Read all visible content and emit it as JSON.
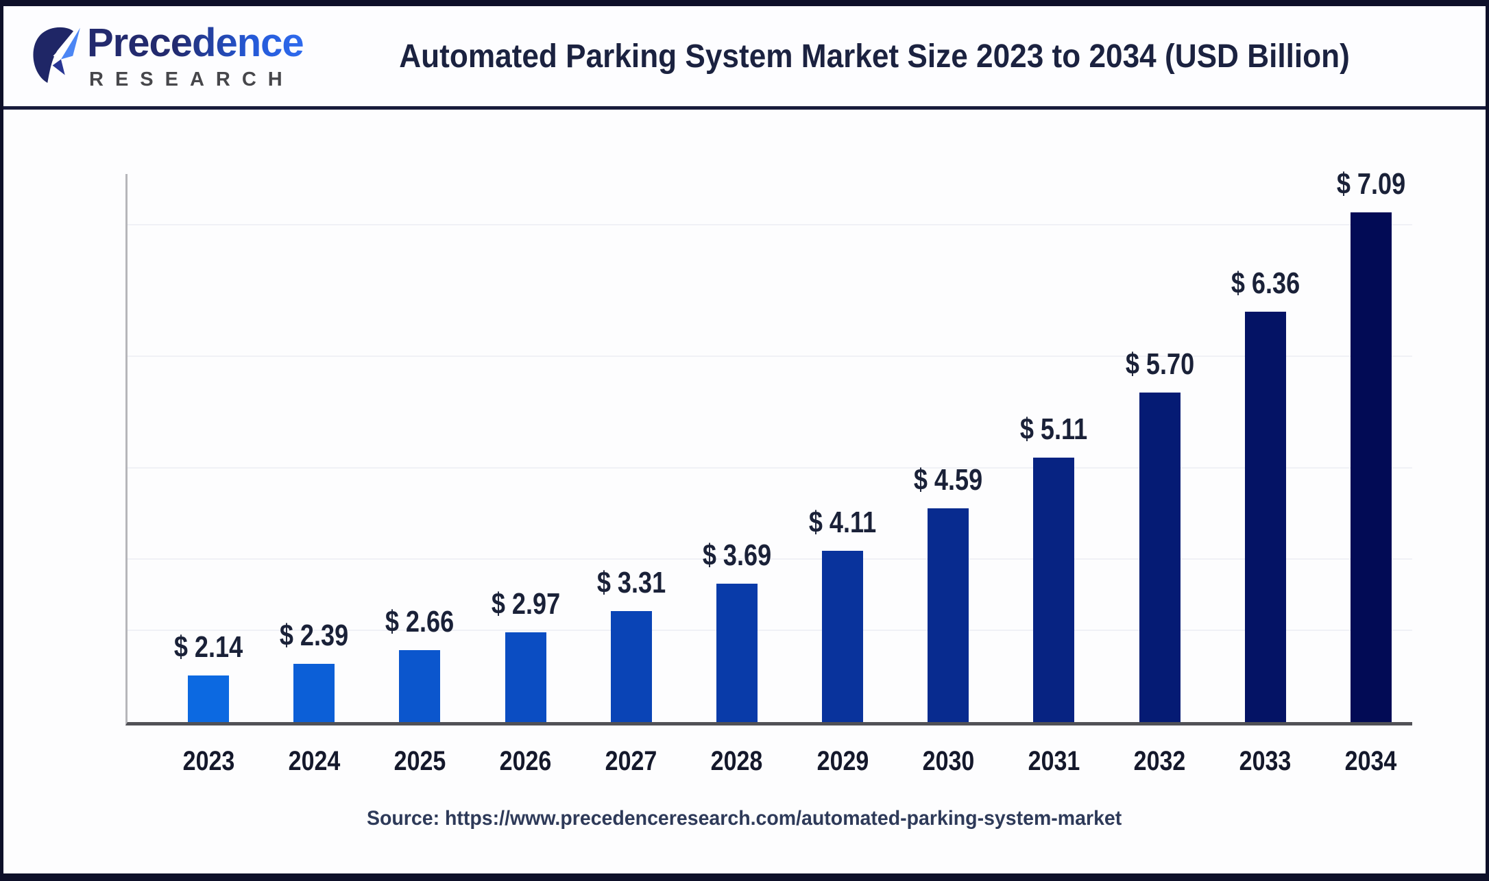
{
  "header": {
    "logo_brand": "Precedence",
    "logo_sub": "RESEARCH",
    "title": "Automated Parking System Market Size 2023 to 2034 (USD Billion)"
  },
  "chart_data": {
    "type": "bar",
    "title": "Automated Parking System Market Size 2023 to 2034 (USD Billion)",
    "unit": "USD Billion",
    "categories": [
      "2023",
      "2024",
      "2025",
      "2026",
      "2027",
      "2028",
      "2029",
      "2030",
      "2031",
      "2032",
      "2033",
      "2034"
    ],
    "values": [
      2.14,
      2.39,
      2.66,
      2.97,
      3.31,
      3.69,
      4.11,
      4.59,
      5.11,
      5.7,
      6.36,
      7.09
    ],
    "value_prefix": "$ ",
    "bar_colors": [
      "#0c69e1",
      "#0c5fd7",
      "#0b56cd",
      "#0b4dc2",
      "#0a44b6",
      "#093ba9",
      "#09339c",
      "#082b8f",
      "#072382",
      "#051b74",
      "#041365",
      "#020b55"
    ],
    "ylim": [
      0,
      7.5
    ],
    "gridline_values": [
      3,
      4,
      5,
      6,
      7
    ],
    "grid": "faint horizontal",
    "legend": "none",
    "value_labels": "above bars"
  },
  "footer": {
    "source": "Source: https://www.precedenceresearch.com/automated-parking-system-market"
  },
  "colors": {
    "accent_start": "#0c69e1",
    "accent_end": "#020b55",
    "frame_border": "#0e1029",
    "header_separator": "#181b3c",
    "title_text": "#1b2240",
    "axis_line": "#b6b6ba",
    "baseline": "#515156",
    "source_text": "#2e3a59"
  }
}
